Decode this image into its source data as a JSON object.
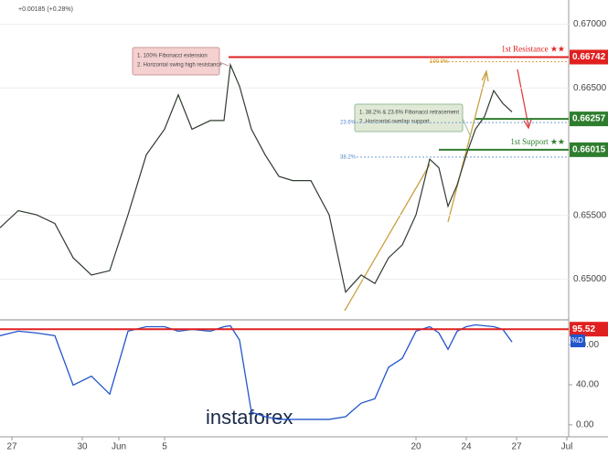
{
  "chart_data": {
    "type": "line",
    "header": "+0.00185 (+0.28%)",
    "x": [
      0,
      20,
      40,
      60,
      80,
      100,
      120,
      140,
      160,
      180,
      195,
      210,
      230,
      245,
      252,
      262,
      275,
      290,
      305,
      320,
      340,
      360,
      378,
      395,
      410,
      425,
      440,
      455,
      470,
      480,
      490,
      500,
      510,
      520,
      530,
      540,
      550,
      560
    ],
    "xlim": [
      0,
      622
    ],
    "xticks": [
      {
        "value": 13,
        "label": "27"
      },
      {
        "value": 90,
        "label": "30"
      },
      {
        "value": 130,
        "label": "Jun"
      },
      {
        "value": 180,
        "label": "5"
      },
      {
        "value": 455,
        "label": "20"
      },
      {
        "value": 510,
        "label": "24"
      },
      {
        "value": 565,
        "label": "27"
      },
      {
        "value": 620,
        "label": "Jul"
      }
    ],
    "series": [
      {
        "name": "Price",
        "color": "#2f3b2f",
        "values": [
          0.65403,
          0.65537,
          0.65504,
          0.65436,
          0.65167,
          0.65032,
          0.65066,
          0.65504,
          0.65975,
          0.66176,
          0.66446,
          0.66176,
          0.66244,
          0.66244,
          0.66681,
          0.66513,
          0.66176,
          0.65975,
          0.65806,
          0.65773,
          0.65773,
          0.65504,
          0.64898,
          0.65032,
          0.64965,
          0.65167,
          0.65268,
          0.65504,
          0.65941,
          0.65874,
          0.65571,
          0.65739,
          0.65975,
          0.66176,
          0.66277,
          0.66479,
          0.66378,
          0.66311
        ]
      }
    ],
    "ylim": [
      0.6468,
      0.6719
    ],
    "yticks": [
      {
        "value": 0.67,
        "label": "0.67000"
      },
      {
        "value": 0.665,
        "label": "0.66500"
      },
      {
        "value": 0.655,
        "label": "0.65500"
      },
      {
        "value": 0.65,
        "label": "0.65000"
      }
    ],
    "levels": [
      {
        "value": 0.66742,
        "label": "0.66742",
        "color": "#e02020",
        "name": "1st Resistance ★★"
      },
      {
        "value": 0.66257,
        "label": "0.66257",
        "color": "#2e7d2e"
      },
      {
        "value": 0.66015,
        "label": "0.66015",
        "color": "#2e7d2e",
        "name": "1st Support ★★"
      }
    ],
    "fib_labels": [
      "100.0%",
      "23.6%",
      "38.2%"
    ],
    "callouts": [
      [
        "1. 100% Fibonacci extension",
        "2. Horizontal swing high resistance"
      ],
      [
        "1. 38.2% & 23.6% Fibonacci retracement",
        "2. Horizontal overlap support"
      ]
    ],
    "rsi": {
      "color": "#2255cc",
      "values": [
        89,
        93.5,
        91.7,
        89,
        39.6,
        48.5,
        30.6,
        93.5,
        98,
        98,
        93.5,
        95.3,
        93.5,
        98,
        98.9,
        84.5,
        12.6,
        8.1,
        5.4,
        5.4,
        5.4,
        5.4,
        8.1,
        21.6,
        26,
        57.5,
        66.3,
        93.5,
        98,
        91.7,
        75.4,
        93.5,
        98,
        99.8,
        98.9,
        98,
        95.3,
        82.7
      ],
      "ylim": [
        -12,
        103
      ],
      "yticks": [
        {
          "value": 80,
          "label": "80.00"
        },
        {
          "value": 40,
          "label": "40.00"
        },
        {
          "value": 0,
          "label": "0.00"
        }
      ],
      "level": {
        "value": 95.52,
        "label": "95.52"
      },
      "tag": "%D"
    },
    "watermark": "instaforex"
  }
}
